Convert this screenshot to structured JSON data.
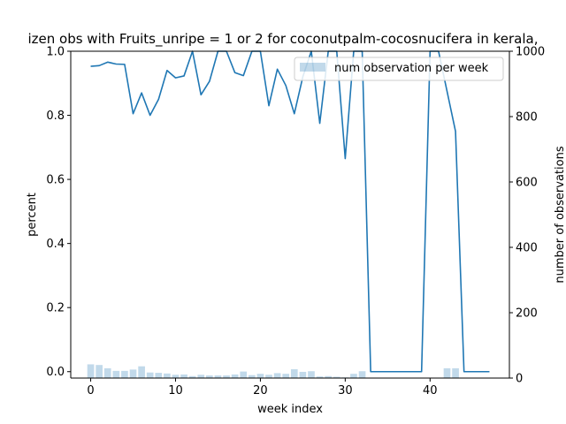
{
  "chart_data": {
    "type": "line",
    "title": "izen obs with Fruits_unripe = 1 or 2 for coconutpalm-cocosnucifera in kerala,",
    "xlabel": "week index",
    "ylabel": "percent",
    "ylabel_right": "number of observations",
    "xlim": [
      -2.35,
      49.35
    ],
    "ylim": [
      -0.02,
      1.0
    ],
    "ylim_right": [
      0,
      1000
    ],
    "xticks": [
      0,
      10,
      20,
      30,
      40
    ],
    "yticks": [
      0.0,
      0.2,
      0.4,
      0.6,
      0.8,
      1.0
    ],
    "yticks_right": [
      0,
      200,
      400,
      600,
      800,
      1000
    ],
    "grid": false,
    "legend_position": "upper right",
    "colors": {
      "line": "#1f77b4",
      "bars": "#1f77b4",
      "bars_alpha": 0.28
    },
    "series": [
      {
        "x": [
          0,
          1,
          2,
          3,
          4,
          5,
          6,
          7,
          8,
          9,
          10,
          11,
          12,
          13,
          14,
          15,
          16,
          17,
          18,
          19,
          20,
          21,
          22,
          23,
          24,
          25,
          26,
          27,
          28,
          29,
          30,
          31,
          32,
          33,
          34,
          35,
          36,
          37,
          38,
          39,
          40,
          41,
          42,
          43,
          44,
          45,
          46,
          47
        ],
        "values": [
          0.953,
          0.955,
          0.966,
          0.96,
          0.959,
          0.805,
          0.87,
          0.8,
          0.85,
          0.94,
          0.917,
          0.923,
          1.0,
          0.864,
          0.906,
          1.0,
          1.0,
          0.933,
          0.924,
          1.0,
          1.0,
          0.83,
          0.944,
          0.893,
          0.805,
          0.92,
          1.0,
          0.775,
          1.0,
          1.0,
          0.665,
          1.0,
          1.0,
          0.0,
          0.0,
          0.0,
          0.0,
          0.0,
          0.0,
          0.0,
          1.0,
          1.0,
          0.875,
          0.75,
          0.0,
          0.0,
          0.0,
          0.0
        ],
        "axis": "left"
      },
      {
        "name": "num observation per week",
        "type": "bar",
        "x": [
          0,
          1,
          2,
          3,
          4,
          5,
          6,
          7,
          8,
          9,
          10,
          11,
          12,
          13,
          14,
          15,
          16,
          17,
          18,
          19,
          20,
          21,
          22,
          23,
          24,
          25,
          26,
          27,
          28,
          29,
          30,
          31,
          32,
          33,
          34,
          35,
          36,
          37,
          38,
          39,
          40,
          41,
          42,
          43,
          44,
          45,
          46,
          47
        ],
        "values": [
          42,
          40,
          30,
          22,
          22,
          26,
          36,
          17,
          16,
          14,
          10,
          11,
          6,
          10,
          8,
          8,
          8,
          11,
          20,
          9,
          13,
          10,
          15,
          13,
          27,
          19,
          21,
          5,
          6,
          4,
          2,
          13,
          21,
          0,
          0,
          0,
          0,
          0,
          0,
          0,
          0,
          0,
          30,
          30,
          0,
          0,
          0,
          0
        ],
        "axis": "right"
      }
    ]
  }
}
